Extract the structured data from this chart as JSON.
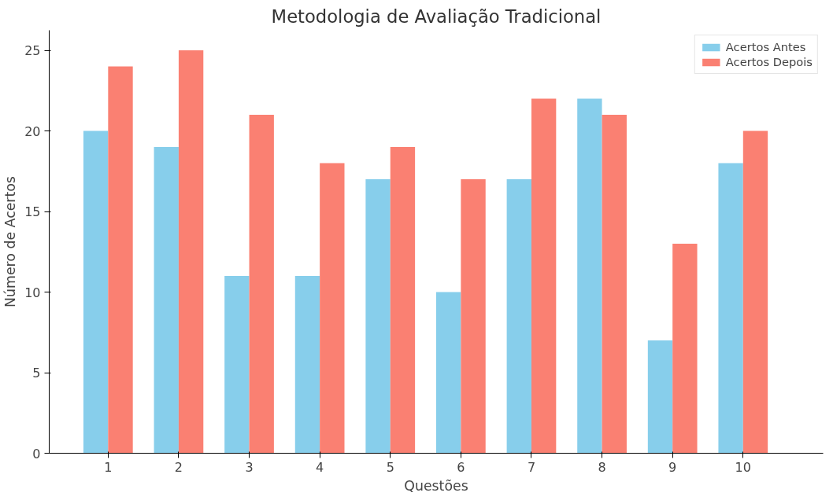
{
  "chart_data": {
    "type": "bar",
    "title": "Metodologia de Avaliação Tradicional",
    "xlabel": "Questões",
    "ylabel": "Número de Acertos",
    "categories": [
      "1",
      "2",
      "3",
      "4",
      "5",
      "6",
      "7",
      "8",
      "9",
      "10"
    ],
    "series": [
      {
        "name": "Acertos Antes",
        "color": "#87ceeb",
        "values": [
          20,
          19,
          11,
          11,
          17,
          10,
          17,
          22,
          7,
          18
        ]
      },
      {
        "name": "Acertos Depois",
        "color": "#fa8072",
        "values": [
          24,
          25,
          21,
          18,
          19,
          17,
          22,
          21,
          13,
          20
        ]
      }
    ],
    "ylim": [
      0,
      26.25
    ],
    "yticks": [
      0,
      5,
      10,
      15,
      20,
      25
    ],
    "grid": false,
    "legend": "top right"
  }
}
